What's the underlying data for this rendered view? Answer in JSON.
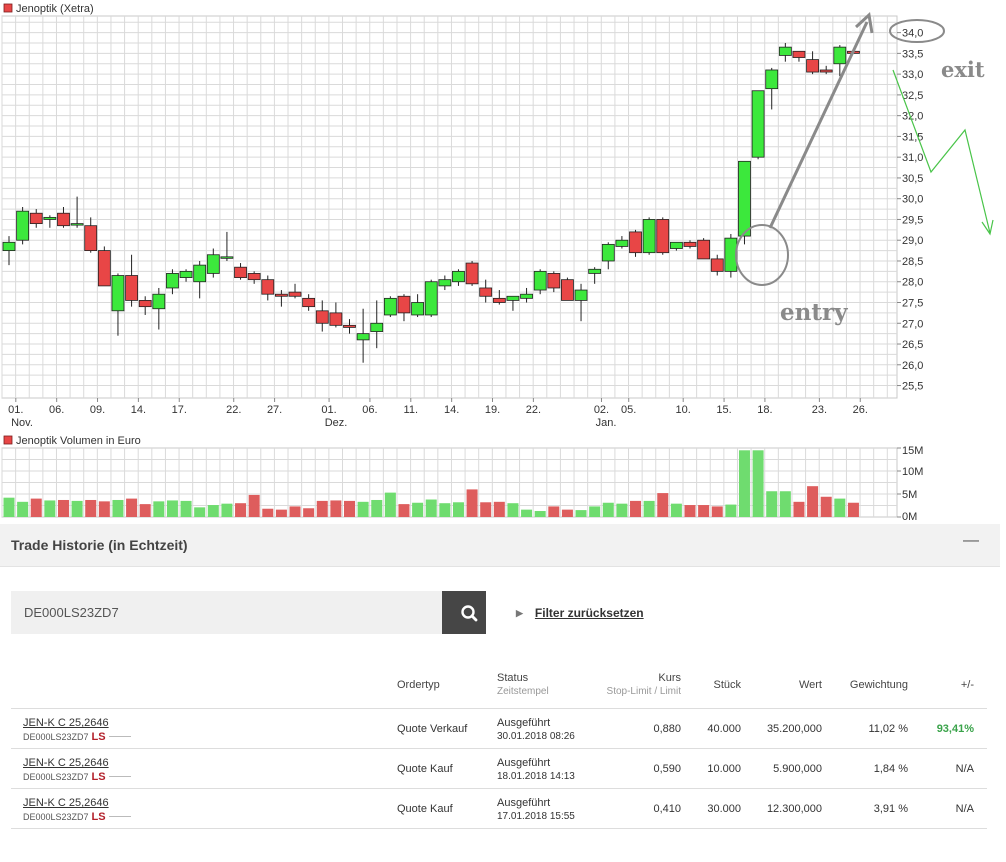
{
  "price_chart_title": "Jenoptik (Xetra)",
  "volume_chart_title": "Jenoptik Volumen in Euro",
  "annotations": {
    "entry": "entry",
    "exit": "exit"
  },
  "colors": {
    "up": "#3ce83c",
    "down": "#e84646",
    "grid": "#dadada",
    "annotation": "#8a8a8a",
    "projection": "#49c449"
  },
  "chart_data": [
    {
      "type": "candlestick",
      "title": "Jenoptik (Xetra)",
      "x_tick_labels": [
        "01.",
        "06.",
        "09.",
        "14.",
        "17.",
        "22.",
        "27.",
        "01.",
        "06.",
        "11.",
        "14.",
        "19.",
        "22.",
        "02.",
        "05.",
        "10.",
        "15.",
        "18.",
        "23.",
        "26."
      ],
      "x_month_labels": [
        "Nov.",
        "Dez.",
        "Jan."
      ],
      "y_tick_labels": [
        "25,5",
        "26,0",
        "26,5",
        "27,0",
        "27,5",
        "28,0",
        "28,5",
        "29,0",
        "29,5",
        "30,0",
        "30,5",
        "31,0",
        "31,5",
        "32,0",
        "32,5",
        "33,0",
        "33,5",
        "34,0"
      ],
      "ylim": [
        25.2,
        34.4
      ],
      "candles": [
        {
          "o": 28.75,
          "h": 29.1,
          "l": 28.4,
          "c": 28.95
        },
        {
          "o": 29.0,
          "h": 29.8,
          "l": 28.9,
          "c": 29.7
        },
        {
          "o": 29.65,
          "h": 29.75,
          "l": 29.3,
          "c": 29.4
        },
        {
          "o": 29.5,
          "h": 29.6,
          "l": 29.3,
          "c": 29.55
        },
        {
          "o": 29.65,
          "h": 29.8,
          "l": 29.3,
          "c": 29.35
        },
        {
          "o": 29.4,
          "h": 30.05,
          "l": 29.3,
          "c": 29.4
        },
        {
          "o": 29.35,
          "h": 29.55,
          "l": 28.7,
          "c": 28.75
        },
        {
          "o": 28.75,
          "h": 28.85,
          "l": 27.9,
          "c": 27.9
        },
        {
          "o": 27.3,
          "h": 28.2,
          "l": 26.7,
          "c": 28.15
        },
        {
          "o": 28.15,
          "h": 28.65,
          "l": 27.4,
          "c": 27.55
        },
        {
          "o": 27.55,
          "h": 27.65,
          "l": 27.2,
          "c": 27.4
        },
        {
          "o": 27.35,
          "h": 27.85,
          "l": 26.85,
          "c": 27.7
        },
        {
          "o": 27.85,
          "h": 28.3,
          "l": 27.7,
          "c": 28.2
        },
        {
          "o": 28.1,
          "h": 28.3,
          "l": 28.0,
          "c": 28.25
        },
        {
          "o": 28.0,
          "h": 28.5,
          "l": 27.6,
          "c": 28.4
        },
        {
          "o": 28.2,
          "h": 28.8,
          "l": 28.1,
          "c": 28.65
        },
        {
          "o": 28.6,
          "h": 29.2,
          "l": 28.5,
          "c": 28.6
        },
        {
          "o": 28.35,
          "h": 28.45,
          "l": 28.05,
          "c": 28.1
        },
        {
          "o": 28.2,
          "h": 28.25,
          "l": 27.95,
          "c": 28.05
        },
        {
          "o": 28.05,
          "h": 28.15,
          "l": 27.55,
          "c": 27.7
        },
        {
          "o": 27.7,
          "h": 27.8,
          "l": 27.4,
          "c": 27.65
        },
        {
          "o": 27.75,
          "h": 27.95,
          "l": 27.6,
          "c": 27.65
        },
        {
          "o": 27.6,
          "h": 27.7,
          "l": 27.3,
          "c": 27.4
        },
        {
          "o": 27.3,
          "h": 27.55,
          "l": 26.8,
          "c": 27.0
        },
        {
          "o": 27.25,
          "h": 27.5,
          "l": 26.9,
          "c": 26.95
        },
        {
          "o": 26.95,
          "h": 27.1,
          "l": 26.75,
          "c": 26.9
        },
        {
          "o": 26.6,
          "h": 27.35,
          "l": 26.05,
          "c": 26.75
        },
        {
          "o": 26.8,
          "h": 27.55,
          "l": 26.4,
          "c": 27.0
        },
        {
          "o": 27.2,
          "h": 27.65,
          "l": 27.15,
          "c": 27.6
        },
        {
          "o": 27.65,
          "h": 27.7,
          "l": 27.05,
          "c": 27.25
        },
        {
          "o": 27.2,
          "h": 27.7,
          "l": 27.15,
          "c": 27.5
        },
        {
          "o": 27.2,
          "h": 28.05,
          "l": 27.15,
          "c": 28.0
        },
        {
          "o": 27.9,
          "h": 28.15,
          "l": 27.8,
          "c": 28.05
        },
        {
          "o": 28.0,
          "h": 28.3,
          "l": 27.9,
          "c": 28.25
        },
        {
          "o": 28.45,
          "h": 28.5,
          "l": 27.9,
          "c": 27.95
        },
        {
          "o": 27.85,
          "h": 28.05,
          "l": 27.5,
          "c": 27.65
        },
        {
          "o": 27.6,
          "h": 27.8,
          "l": 27.45,
          "c": 27.5
        },
        {
          "o": 27.55,
          "h": 27.65,
          "l": 27.3,
          "c": 27.65
        },
        {
          "o": 27.6,
          "h": 27.85,
          "l": 27.5,
          "c": 27.7
        },
        {
          "o": 27.8,
          "h": 28.3,
          "l": 27.7,
          "c": 28.25
        },
        {
          "o": 28.2,
          "h": 28.25,
          "l": 27.75,
          "c": 27.85
        },
        {
          "o": 28.05,
          "h": 28.1,
          "l": 27.55,
          "c": 27.55
        },
        {
          "o": 27.55,
          "h": 27.95,
          "l": 27.05,
          "c": 27.8
        },
        {
          "o": 28.2,
          "h": 28.35,
          "l": 27.95,
          "c": 28.3
        },
        {
          "o": 28.5,
          "h": 28.95,
          "l": 28.3,
          "c": 28.9
        },
        {
          "o": 28.85,
          "h": 29.1,
          "l": 28.8,
          "c": 29.0
        },
        {
          "o": 29.2,
          "h": 29.25,
          "l": 28.6,
          "c": 28.7
        },
        {
          "o": 28.7,
          "h": 29.55,
          "l": 28.65,
          "c": 29.5
        },
        {
          "o": 29.5,
          "h": 29.55,
          "l": 28.65,
          "c": 28.7
        },
        {
          "o": 28.8,
          "h": 28.95,
          "l": 28.75,
          "c": 28.95
        },
        {
          "o": 28.95,
          "h": 29.0,
          "l": 28.8,
          "c": 28.85
        },
        {
          "o": 29.0,
          "h": 29.05,
          "l": 28.6,
          "c": 28.55
        },
        {
          "o": 28.55,
          "h": 28.65,
          "l": 28.15,
          "c": 28.25
        },
        {
          "o": 28.25,
          "h": 29.15,
          "l": 28.1,
          "c": 29.05
        },
        {
          "o": 29.1,
          "h": 30.9,
          "l": 28.9,
          "c": 30.9
        },
        {
          "o": 31.0,
          "h": 32.6,
          "l": 30.95,
          "c": 32.6
        },
        {
          "o": 32.65,
          "h": 33.15,
          "l": 32.15,
          "c": 33.1
        },
        {
          "o": 33.45,
          "h": 33.75,
          "l": 33.3,
          "c": 33.65
        },
        {
          "o": 33.55,
          "h": 33.55,
          "l": 33.3,
          "c": 33.4
        },
        {
          "o": 33.35,
          "h": 33.55,
          "l": 33.0,
          "c": 33.05
        },
        {
          "o": 33.1,
          "h": 33.2,
          "l": 33.0,
          "c": 33.05
        },
        {
          "o": 33.25,
          "h": 33.7,
          "l": 32.95,
          "c": 33.65
        },
        {
          "o": 33.55,
          "h": 33.6,
          "l": 33.5,
          "c": 33.5
        }
      ]
    },
    {
      "type": "bar",
      "title": "Jenoptik Volumen in Euro",
      "y_tick_labels": [
        "15M",
        "10M",
        "5M",
        "0M"
      ],
      "ylim": [
        0,
        15
      ],
      "values": [
        4.2,
        3.3,
        4.0,
        3.6,
        3.7,
        3.5,
        3.7,
        3.4,
        3.7,
        4.0,
        2.8,
        3.4,
        3.6,
        3.5,
        2.1,
        2.6,
        2.9,
        3.0,
        4.8,
        1.8,
        1.6,
        2.3,
        1.9,
        3.5,
        3.6,
        3.5,
        3.3,
        3.7,
        5.3,
        2.8,
        3.1,
        3.8,
        3.0,
        3.2,
        6.0,
        3.2,
        3.3,
        3.0,
        1.6,
        1.3,
        2.3,
        1.6,
        1.5,
        2.3,
        3.1,
        2.9,
        3.5,
        3.5,
        5.2,
        2.9,
        2.6,
        2.6,
        2.3,
        2.7,
        14.5,
        14.5,
        5.6,
        5.6,
        3.3,
        6.7,
        4.4,
        4.0,
        3.1
      ]
    }
  ],
  "trade_history": {
    "title": "Trade Historie (in Echtzeit)",
    "collapse_label": "—",
    "search_value": "DE000LS23ZD7",
    "filter_reset_label": "Filter zurücksetzen",
    "headers": {
      "ordertyp": "Ordertyp",
      "status": "Status",
      "status_sub": "Zeitstempel",
      "kurs": "Kurs",
      "kurs_sub": "Stop-Limit / Limit",
      "stueck": "Stück",
      "wert": "Wert",
      "gewichtung": "Gewichtung",
      "pm": "+/-"
    },
    "rows": [
      {
        "name": "JEN-K C 25,2646",
        "isin": "DE000LS23ZD7",
        "issuer": "LS",
        "ordertyp": "Quote Verkauf",
        "status": "Ausgeführt",
        "timestamp": "30.01.2018 08:26",
        "kurs": "0,880",
        "stueck": "40.000",
        "wert": "35.200,000",
        "gewichtung": "11,02 %",
        "pm": "93,41%"
      },
      {
        "name": "JEN-K C 25,2646",
        "isin": "DE000LS23ZD7",
        "issuer": "LS",
        "ordertyp": "Quote Kauf",
        "status": "Ausgeführt",
        "timestamp": "18.01.2018 14:13",
        "kurs": "0,590",
        "stueck": "10.000",
        "wert": "5.900,000",
        "gewichtung": "1,84 %",
        "pm": "N/A"
      },
      {
        "name": "JEN-K C 25,2646",
        "isin": "DE000LS23ZD7",
        "issuer": "LS",
        "ordertyp": "Quote Kauf",
        "status": "Ausgeführt",
        "timestamp": "17.01.2018 15:55",
        "kurs": "0,410",
        "stueck": "30.000",
        "wert": "12.300,000",
        "gewichtung": "3,91 %",
        "pm": "N/A"
      }
    ]
  }
}
